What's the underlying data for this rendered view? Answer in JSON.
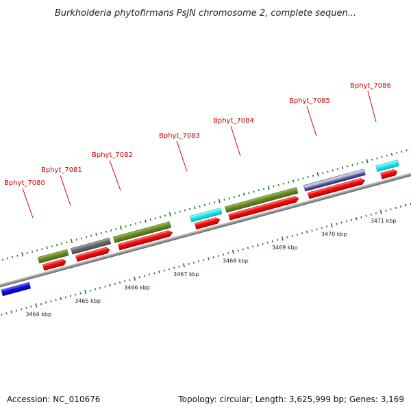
{
  "title": "Burkholderia phytofirmans PsJN chromosome 2, complete sequen...",
  "footer": {
    "accession": "Accession: NC_010676",
    "summary": "Topology: circular; Length: 3,625,999 bp; Genes: 3,169"
  },
  "colors": {
    "gene_label": "#cc0000",
    "tick": "#0a7a0a",
    "backbone": "#9a9a9a",
    "cds": "#ff0000",
    "olive": "#6f8f2a",
    "gray": "#6e6e6e",
    "cyan": "#1ff0f0",
    "lavender": "#5a5aa8",
    "blue": "#1010ee"
  },
  "gene_labels": [
    {
      "text": "Bphyt_7080"
    },
    {
      "text": "Bphyt_7081"
    },
    {
      "text": "Bphyt_7082"
    },
    {
      "text": "Bphyt_7083"
    },
    {
      "text": "Bphyt_7084"
    },
    {
      "text": "Bphyt_7085"
    },
    {
      "text": "Bphyt_7086"
    }
  ],
  "kbp_labels": [
    "3464 kbp",
    "3465 kbp",
    "3466 kbp",
    "3467 kbp",
    "3468 kbp",
    "3469 kbp",
    "3470 kbp",
    "3471 kbp"
  ]
}
